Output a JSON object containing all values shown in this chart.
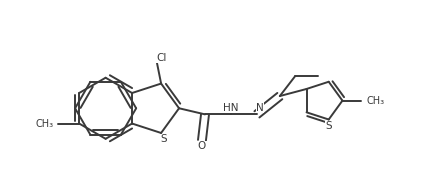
{
  "bg": "#ffffff",
  "lc": "#3a3a3a",
  "lw": 1.4,
  "fs": 7.5,
  "xlim": [
    -0.5,
    10.5
  ],
  "ylim": [
    -2.5,
    3.5
  ]
}
